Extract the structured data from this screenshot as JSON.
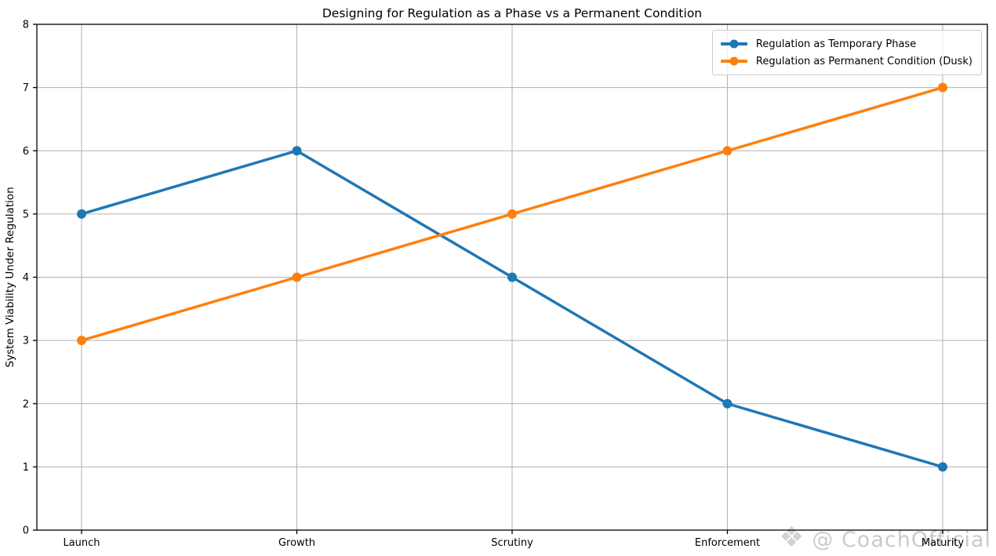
{
  "watermark": {
    "icon": "❖",
    "text": "@ CoachOfficial"
  },
  "chart_data": {
    "type": "line",
    "title": "Designing for Regulation as a Phase vs a Permanent Condition",
    "xlabel": "",
    "ylabel": "System Viability Under Regulation",
    "categories": [
      "Launch",
      "Growth",
      "Scrutiny",
      "Enforcement",
      "Maturity"
    ],
    "series": [
      {
        "name": "Regulation as Temporary Phase",
        "color": "#1f77b4",
        "values": [
          5,
          6,
          4,
          2,
          1
        ]
      },
      {
        "name": "Regulation as Permanent Condition (Dusk)",
        "color": "#ff7f0e",
        "values": [
          3,
          4,
          5,
          6,
          7
        ]
      }
    ],
    "ylim": [
      0,
      8
    ],
    "yticks": [
      0,
      1,
      2,
      3,
      4,
      5,
      6,
      7,
      8
    ],
    "grid": true,
    "grid_color": "#b0b0b0",
    "legend_position": "upper right",
    "marker": "circle",
    "line_width": 3.5
  }
}
